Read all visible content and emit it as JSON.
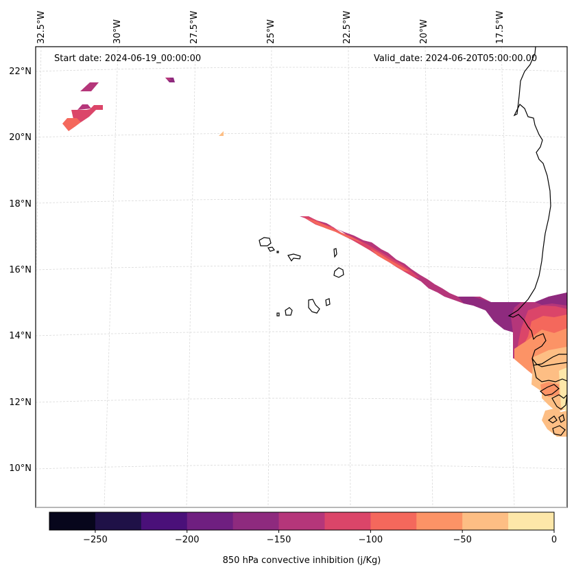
{
  "map": {
    "start_date_label": "Start date: 2024-06-19_00:00:00",
    "valid_date_label": "Valid_date: 2024-06-20T05:00:00.00",
    "lon_ticks": [
      "32.5°W",
      "30°W",
      "27.5°W",
      "25°W",
      "22.5°W",
      "20°W",
      "17.5°W"
    ],
    "lat_ticks": [
      "22°N",
      "20°N",
      "18°N",
      "16°N",
      "14°N",
      "12°N",
      "10°N"
    ],
    "extent": {
      "lon_min": -32.6,
      "lon_max": -16.4,
      "lat_min": 9.2,
      "lat_max": 22.7
    },
    "field": "850 hPa convective inhibition",
    "units": "j/Kg"
  },
  "colorbar": {
    "title": "850 hPa convective inhibition (j/Kg)",
    "ticks": [
      "−250",
      "−200",
      "−150",
      "−100",
      "−50",
      "0"
    ],
    "tick_values": [
      -250,
      -200,
      -150,
      -100,
      -50,
      0
    ],
    "levels": [
      -275,
      -250,
      -225,
      -200,
      -175,
      -150,
      -125,
      -100,
      -75,
      -50,
      -25,
      0
    ],
    "colors": [
      "#07061c",
      "#1f1147",
      "#4a1079",
      "#6f1f80",
      "#8e2a7e",
      "#b5367a",
      "#db4569",
      "#f4685c",
      "#fc9366",
      "#fdbe84",
      "#fde7a9"
    ]
  },
  "chart_data": {
    "type": "heatmap",
    "title": "",
    "annotations": [
      "Start date: 2024-06-19_00:00:00",
      "Valid_date: 2024-06-20T05:00:00.00"
    ],
    "xlabel": "",
    "ylabel": "",
    "x_ticks": [
      "32.5°W",
      "30°W",
      "27.5°W",
      "25°W",
      "22.5°W",
      "20°W",
      "17.5°W"
    ],
    "y_ticks": [
      "22°N",
      "20°N",
      "18°N",
      "16°N",
      "14°N",
      "12°N",
      "10°N"
    ],
    "colorbar_label": "850 hPa convective inhibition (j/Kg)",
    "colorbar_range": [
      -275,
      0
    ],
    "grid": true,
    "regions": [
      {
        "name": "NW patches near 31°W 20.5–21.5°N",
        "value_range": [
          -125,
          -100
        ]
      },
      {
        "name": "small patch near 28°W 21.8°N",
        "value_range": [
          -175,
          -150
        ]
      },
      {
        "name": "small patch near 26.4°W 20.2°N",
        "value_range": [
          -50,
          -25
        ]
      },
      {
        "name": "band from 23.5°W 17.6°N to 17.5°W 15°N",
        "value_range": [
          -175,
          -100
        ]
      },
      {
        "name": "Senegal coast region 17.5–16.4°W 11–15°N",
        "value_range": [
          -175,
          -25
        ]
      }
    ]
  }
}
